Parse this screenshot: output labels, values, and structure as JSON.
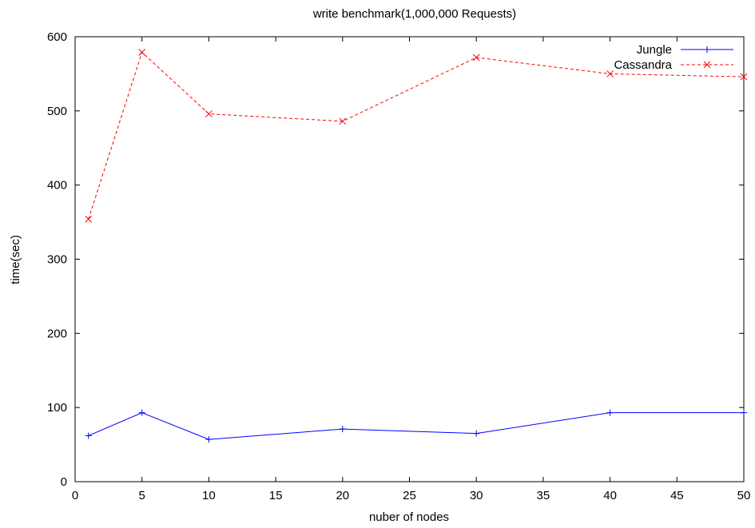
{
  "chart_data": {
    "type": "line",
    "title": "write benchmark(1,000,000 Requests)",
    "xlabel": "nuber of nodes",
    "ylabel": "time(sec)",
    "xlim": [
      0,
      50
    ],
    "ylim": [
      0,
      600
    ],
    "xticks": [
      0,
      5,
      10,
      15,
      20,
      25,
      30,
      35,
      40,
      45,
      50
    ],
    "yticks": [
      0,
      100,
      200,
      300,
      400,
      500,
      600
    ],
    "grid": false,
    "legend_position": "top-right",
    "series": [
      {
        "name": "Jungle",
        "color": "#0000ff",
        "marker": "plus",
        "line_style": "solid",
        "x": [
          1,
          5,
          10,
          20,
          30,
          40,
          50
        ],
        "y": [
          62,
          93,
          57,
          71,
          65,
          93,
          93
        ]
      },
      {
        "name": "Cassandra",
        "color": "#ff0000",
        "marker": "cross",
        "line_style": "dashed",
        "x": [
          1,
          5,
          10,
          20,
          30,
          40,
          50
        ],
        "y": [
          354,
          579,
          496,
          486,
          572,
          550,
          546
        ]
      }
    ]
  }
}
